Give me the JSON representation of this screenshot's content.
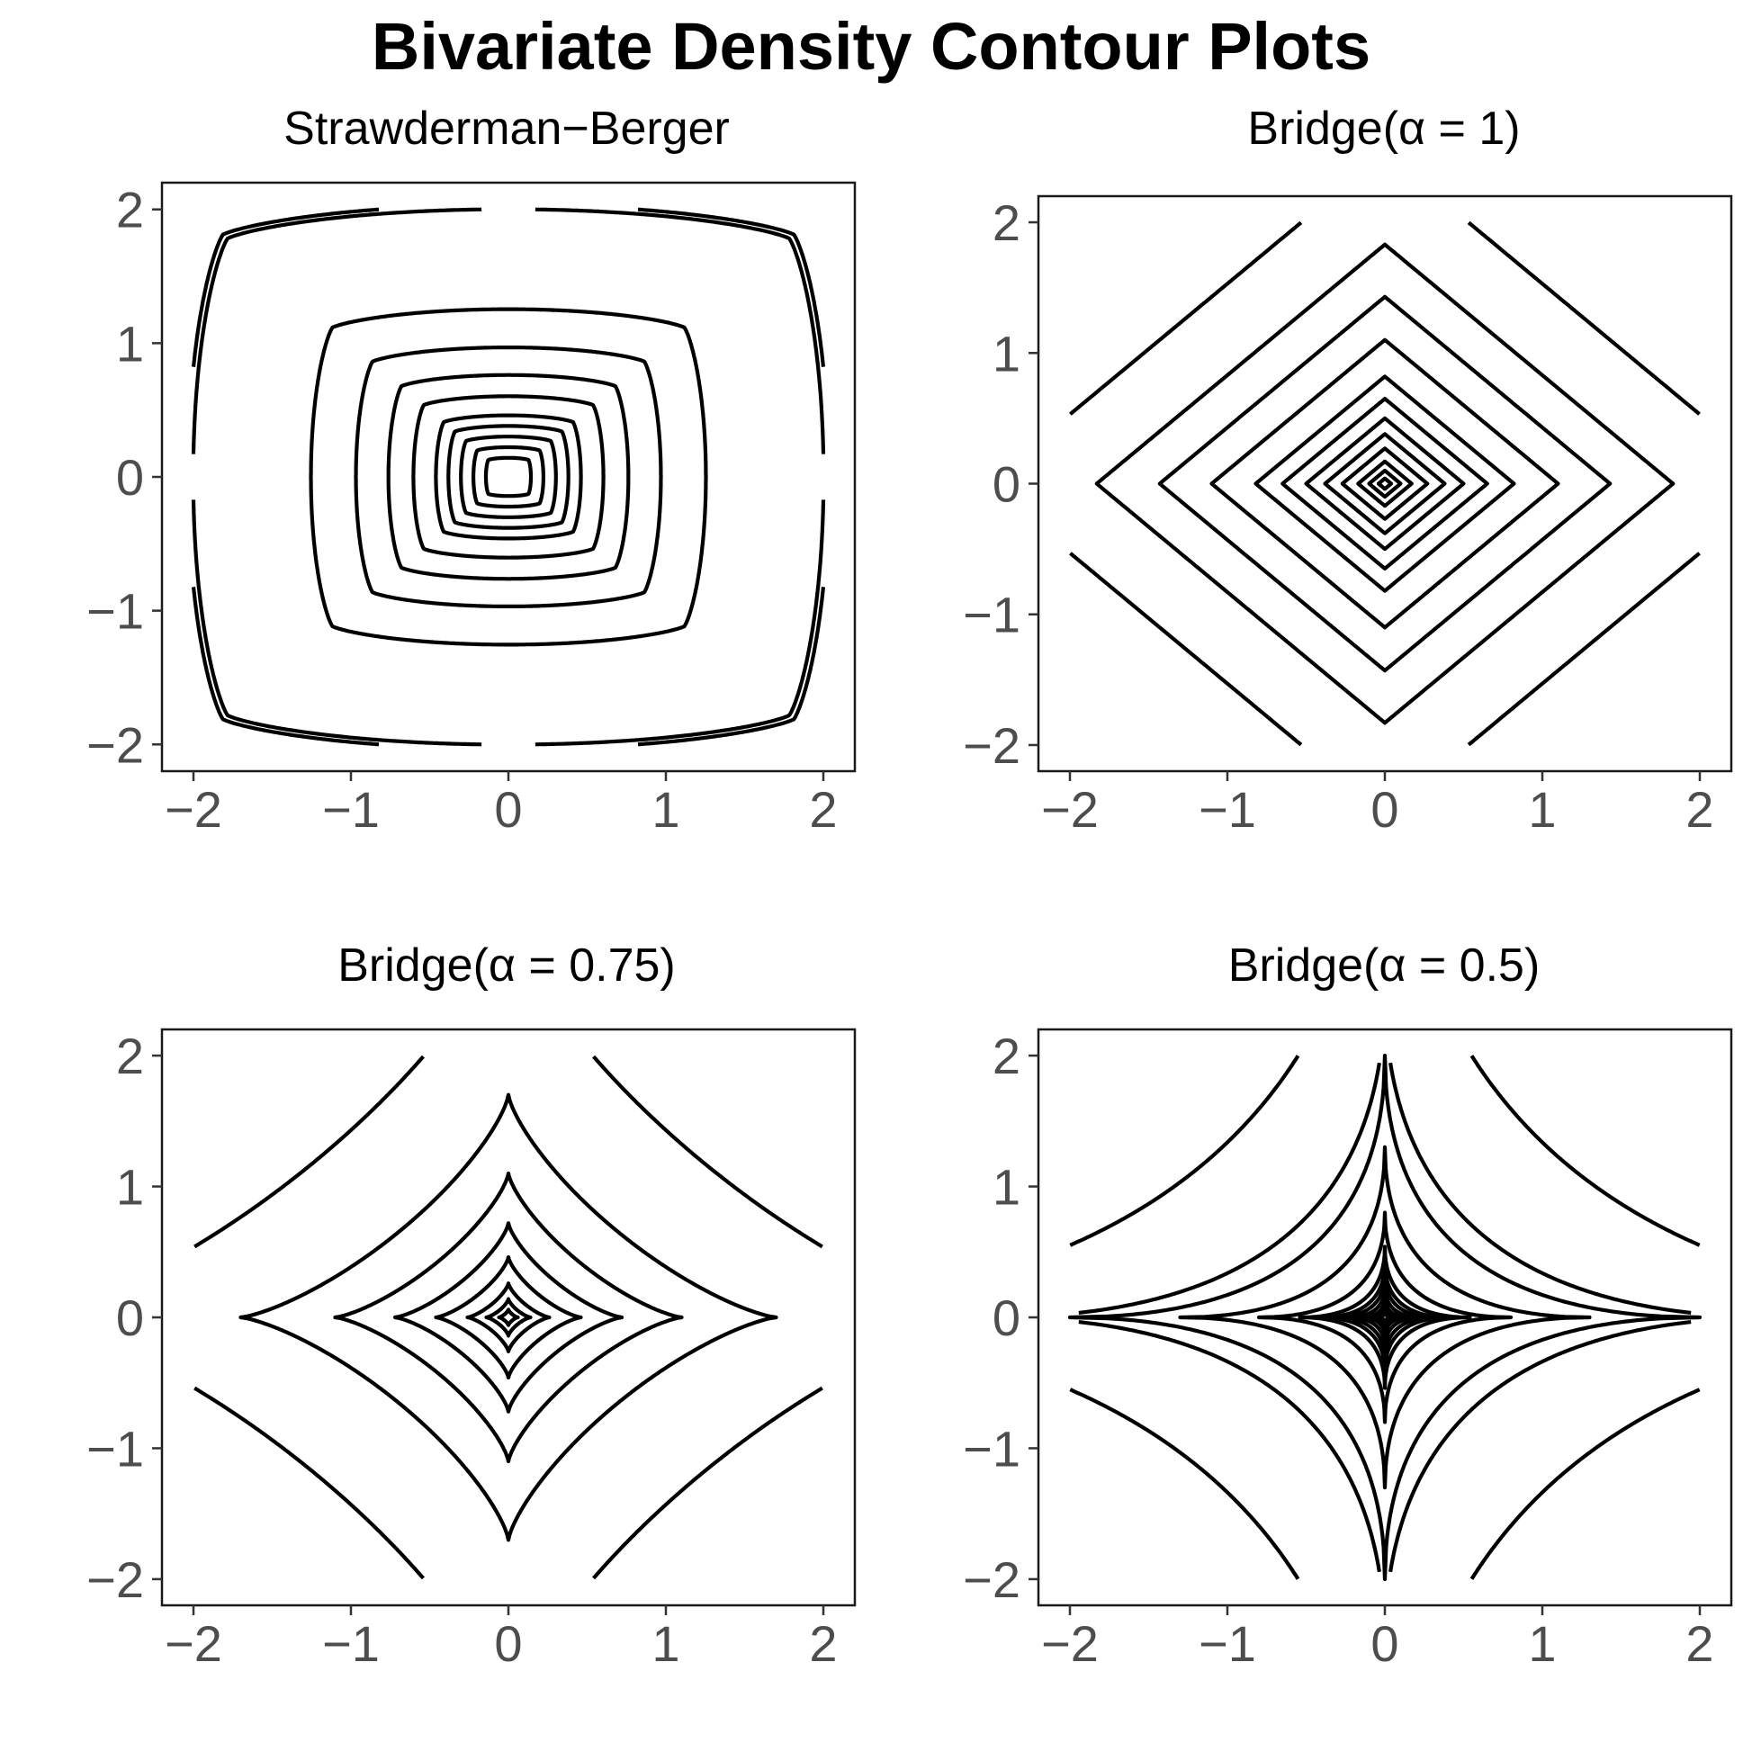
{
  "title": "Bivariate Density Contour Plots",
  "chart_data": [
    {
      "type": "contour",
      "title": "Strawderman−Berger",
      "density": "strawderman_berger",
      "xlim": [
        -2.2,
        2.2
      ],
      "ylim": [
        -2.2,
        2.2
      ],
      "x_ticks": [
        -2,
        -1,
        0,
        1,
        2
      ],
      "x_tick_labels": [
        "−2",
        "−1",
        "0",
        "1",
        "2"
      ],
      "y_ticks": [
        -2,
        -1,
        0,
        1,
        2
      ],
      "y_tick_labels": [
        "−2",
        "−1",
        "0",
        "1",
        "2"
      ],
      "contours": [
        {
          "level": 1,
          "x_intercept": 0.18
        },
        {
          "level": 2,
          "x_intercept": 0.28
        },
        {
          "level": 3,
          "x_intercept": 0.38
        },
        {
          "level": 4,
          "x_intercept": 0.48
        },
        {
          "level": 5,
          "x_intercept": 0.58
        },
        {
          "level": 6,
          "x_intercept": 0.76
        },
        {
          "level": 7,
          "x_intercept": 0.96
        },
        {
          "level": 8,
          "x_intercept": 1.22
        },
        {
          "level": 9,
          "x_intercept": 1.58
        },
        {
          "level": 10,
          "through_point": [
            2,
            0.17
          ]
        },
        {
          "level": 11,
          "through_point": [
            2,
            0.82
          ]
        }
      ],
      "grid": false
    },
    {
      "type": "contour",
      "title": "Bridge(α = 1)",
      "density": "bridge",
      "alpha": 1,
      "xlim": [
        -2.2,
        2.2
      ],
      "ylim": [
        -2.2,
        2.2
      ],
      "x_ticks": [
        -2,
        -1,
        0,
        1,
        2
      ],
      "x_tick_labels": [
        "−2",
        "−1",
        "0",
        "1",
        "2"
      ],
      "y_ticks": [
        -2,
        -1,
        0,
        1,
        2
      ],
      "y_tick_labels": [
        "−2",
        "−1",
        "0",
        "1",
        "2"
      ],
      "contours": [
        {
          "level": 1,
          "x_intercept": 0.04
        },
        {
          "level": 2,
          "x_intercept": 0.1
        },
        {
          "level": 3,
          "x_intercept": 0.17
        },
        {
          "level": 4,
          "x_intercept": 0.27
        },
        {
          "level": 5,
          "x_intercept": 0.38
        },
        {
          "level": 6,
          "x_intercept": 0.5
        },
        {
          "level": 7,
          "x_intercept": 0.65
        },
        {
          "level": 8,
          "x_intercept": 0.82
        },
        {
          "level": 9,
          "x_intercept": 1.1
        },
        {
          "level": 10,
          "x_intercept": 1.43
        },
        {
          "level": 11,
          "x_intercept": 1.83
        },
        {
          "level": 12,
          "x_intercept": 2.53
        }
      ],
      "grid": false
    },
    {
      "type": "contour",
      "title": "Bridge(α = 0.75)",
      "density": "bridge",
      "alpha": 0.75,
      "xlim": [
        -2.2,
        2.2
      ],
      "ylim": [
        -2.2,
        2.2
      ],
      "x_ticks": [
        -2,
        -1,
        0,
        1,
        2
      ],
      "x_tick_labels": [
        "−2",
        "−1",
        "0",
        "1",
        "2"
      ],
      "y_ticks": [
        -2,
        -1,
        0,
        1,
        2
      ],
      "y_tick_labels": [
        "−2",
        "−1",
        "0",
        "1",
        "2"
      ],
      "contours": [
        {
          "level": 1,
          "x_intercept": 0.06
        },
        {
          "level": 2,
          "x_intercept": 0.14
        },
        {
          "level": 3,
          "x_intercept": 0.26
        },
        {
          "level": 4,
          "x_intercept": 0.46
        },
        {
          "level": 5,
          "x_intercept": 0.72
        },
        {
          "level": 6,
          "x_intercept": 1.1
        },
        {
          "level": 7,
          "x_intercept": 1.7
        },
        {
          "level": 8,
          "x_intercept": 3.05
        }
      ],
      "grid": false
    },
    {
      "type": "contour",
      "title": "Bridge(α = 0.5)",
      "density": "bridge",
      "alpha": 0.5,
      "xlim": [
        -2.2,
        2.2
      ],
      "ylim": [
        -2.2,
        2.2
      ],
      "x_ticks": [
        -2,
        -1,
        0,
        1,
        2
      ],
      "x_tick_labels": [
        "−2",
        "−1",
        "0",
        "1",
        "2"
      ],
      "y_ticks": [
        -2,
        -1,
        0,
        1,
        2
      ],
      "y_tick_labels": [
        "−2",
        "−1",
        "0",
        "1",
        "2"
      ],
      "contours": [
        {
          "level": 1,
          "x_intercept": 0.05
        },
        {
          "level": 2,
          "x_intercept": 0.1
        },
        {
          "level": 3,
          "x_intercept": 0.16
        },
        {
          "level": 4,
          "x_intercept": 0.24
        },
        {
          "level": 5,
          "x_intercept": 0.33
        },
        {
          "level": 6,
          "x_intercept": 0.42
        },
        {
          "level": 7,
          "x_intercept": 0.54
        },
        {
          "level": 8,
          "x_intercept": 0.8
        },
        {
          "level": 9,
          "x_intercept": 1.3
        },
        {
          "level": 10,
          "x_intercept": 2.0
        },
        {
          "level": 11,
          "x_intercept": 2.5
        },
        {
          "level": 12,
          "x_intercept": 4.65
        }
      ],
      "grid": false
    }
  ]
}
